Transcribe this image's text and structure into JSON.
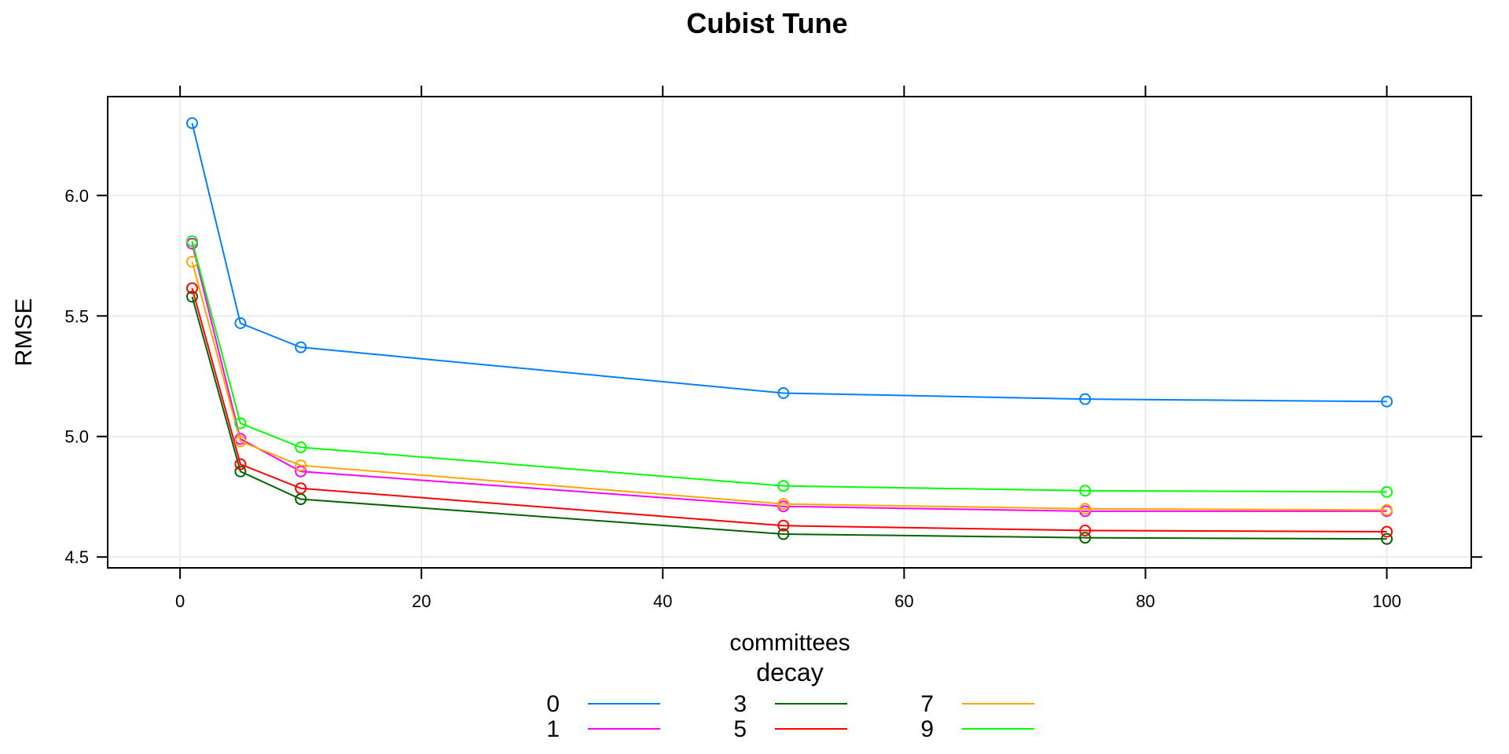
{
  "chart_data": {
    "type": "line",
    "title": "Cubist Tune",
    "xlabel": "committees",
    "ylabel": "RMSE",
    "xlim": [
      -6,
      107
    ],
    "ylim": [
      4.455,
      6.41
    ],
    "xticks": [
      0,
      20,
      40,
      60,
      80,
      100
    ],
    "yticks": [
      4.5,
      5.0,
      5.5,
      6.0
    ],
    "ytick_labels": [
      "4.5",
      "5.0",
      "5.5",
      "6.0"
    ],
    "grid": true,
    "legend_title": "decay",
    "legend_position": "bottom",
    "x": [
      1,
      5,
      10,
      50,
      75,
      100
    ],
    "series": [
      {
        "name": "0",
        "color": "#0080ff",
        "values": [
          6.3,
          5.47,
          5.37,
          5.18,
          5.155,
          5.145
        ]
      },
      {
        "name": "1",
        "color": "#ff00ff",
        "values": [
          5.8,
          4.99,
          4.855,
          4.71,
          4.69,
          4.69
        ]
      },
      {
        "name": "3",
        "color": "#006400",
        "values": [
          5.58,
          4.855,
          4.74,
          4.595,
          4.58,
          4.575
        ]
      },
      {
        "name": "5",
        "color": "#ff0000",
        "values": [
          5.615,
          4.885,
          4.785,
          4.63,
          4.61,
          4.605
        ]
      },
      {
        "name": "7",
        "color": "#ffa500",
        "values": [
          5.725,
          4.98,
          4.88,
          4.72,
          4.7,
          4.695
        ]
      },
      {
        "name": "9",
        "color": "#00ff00",
        "values": [
          5.81,
          5.055,
          4.955,
          4.795,
          4.775,
          4.77
        ]
      }
    ]
  }
}
